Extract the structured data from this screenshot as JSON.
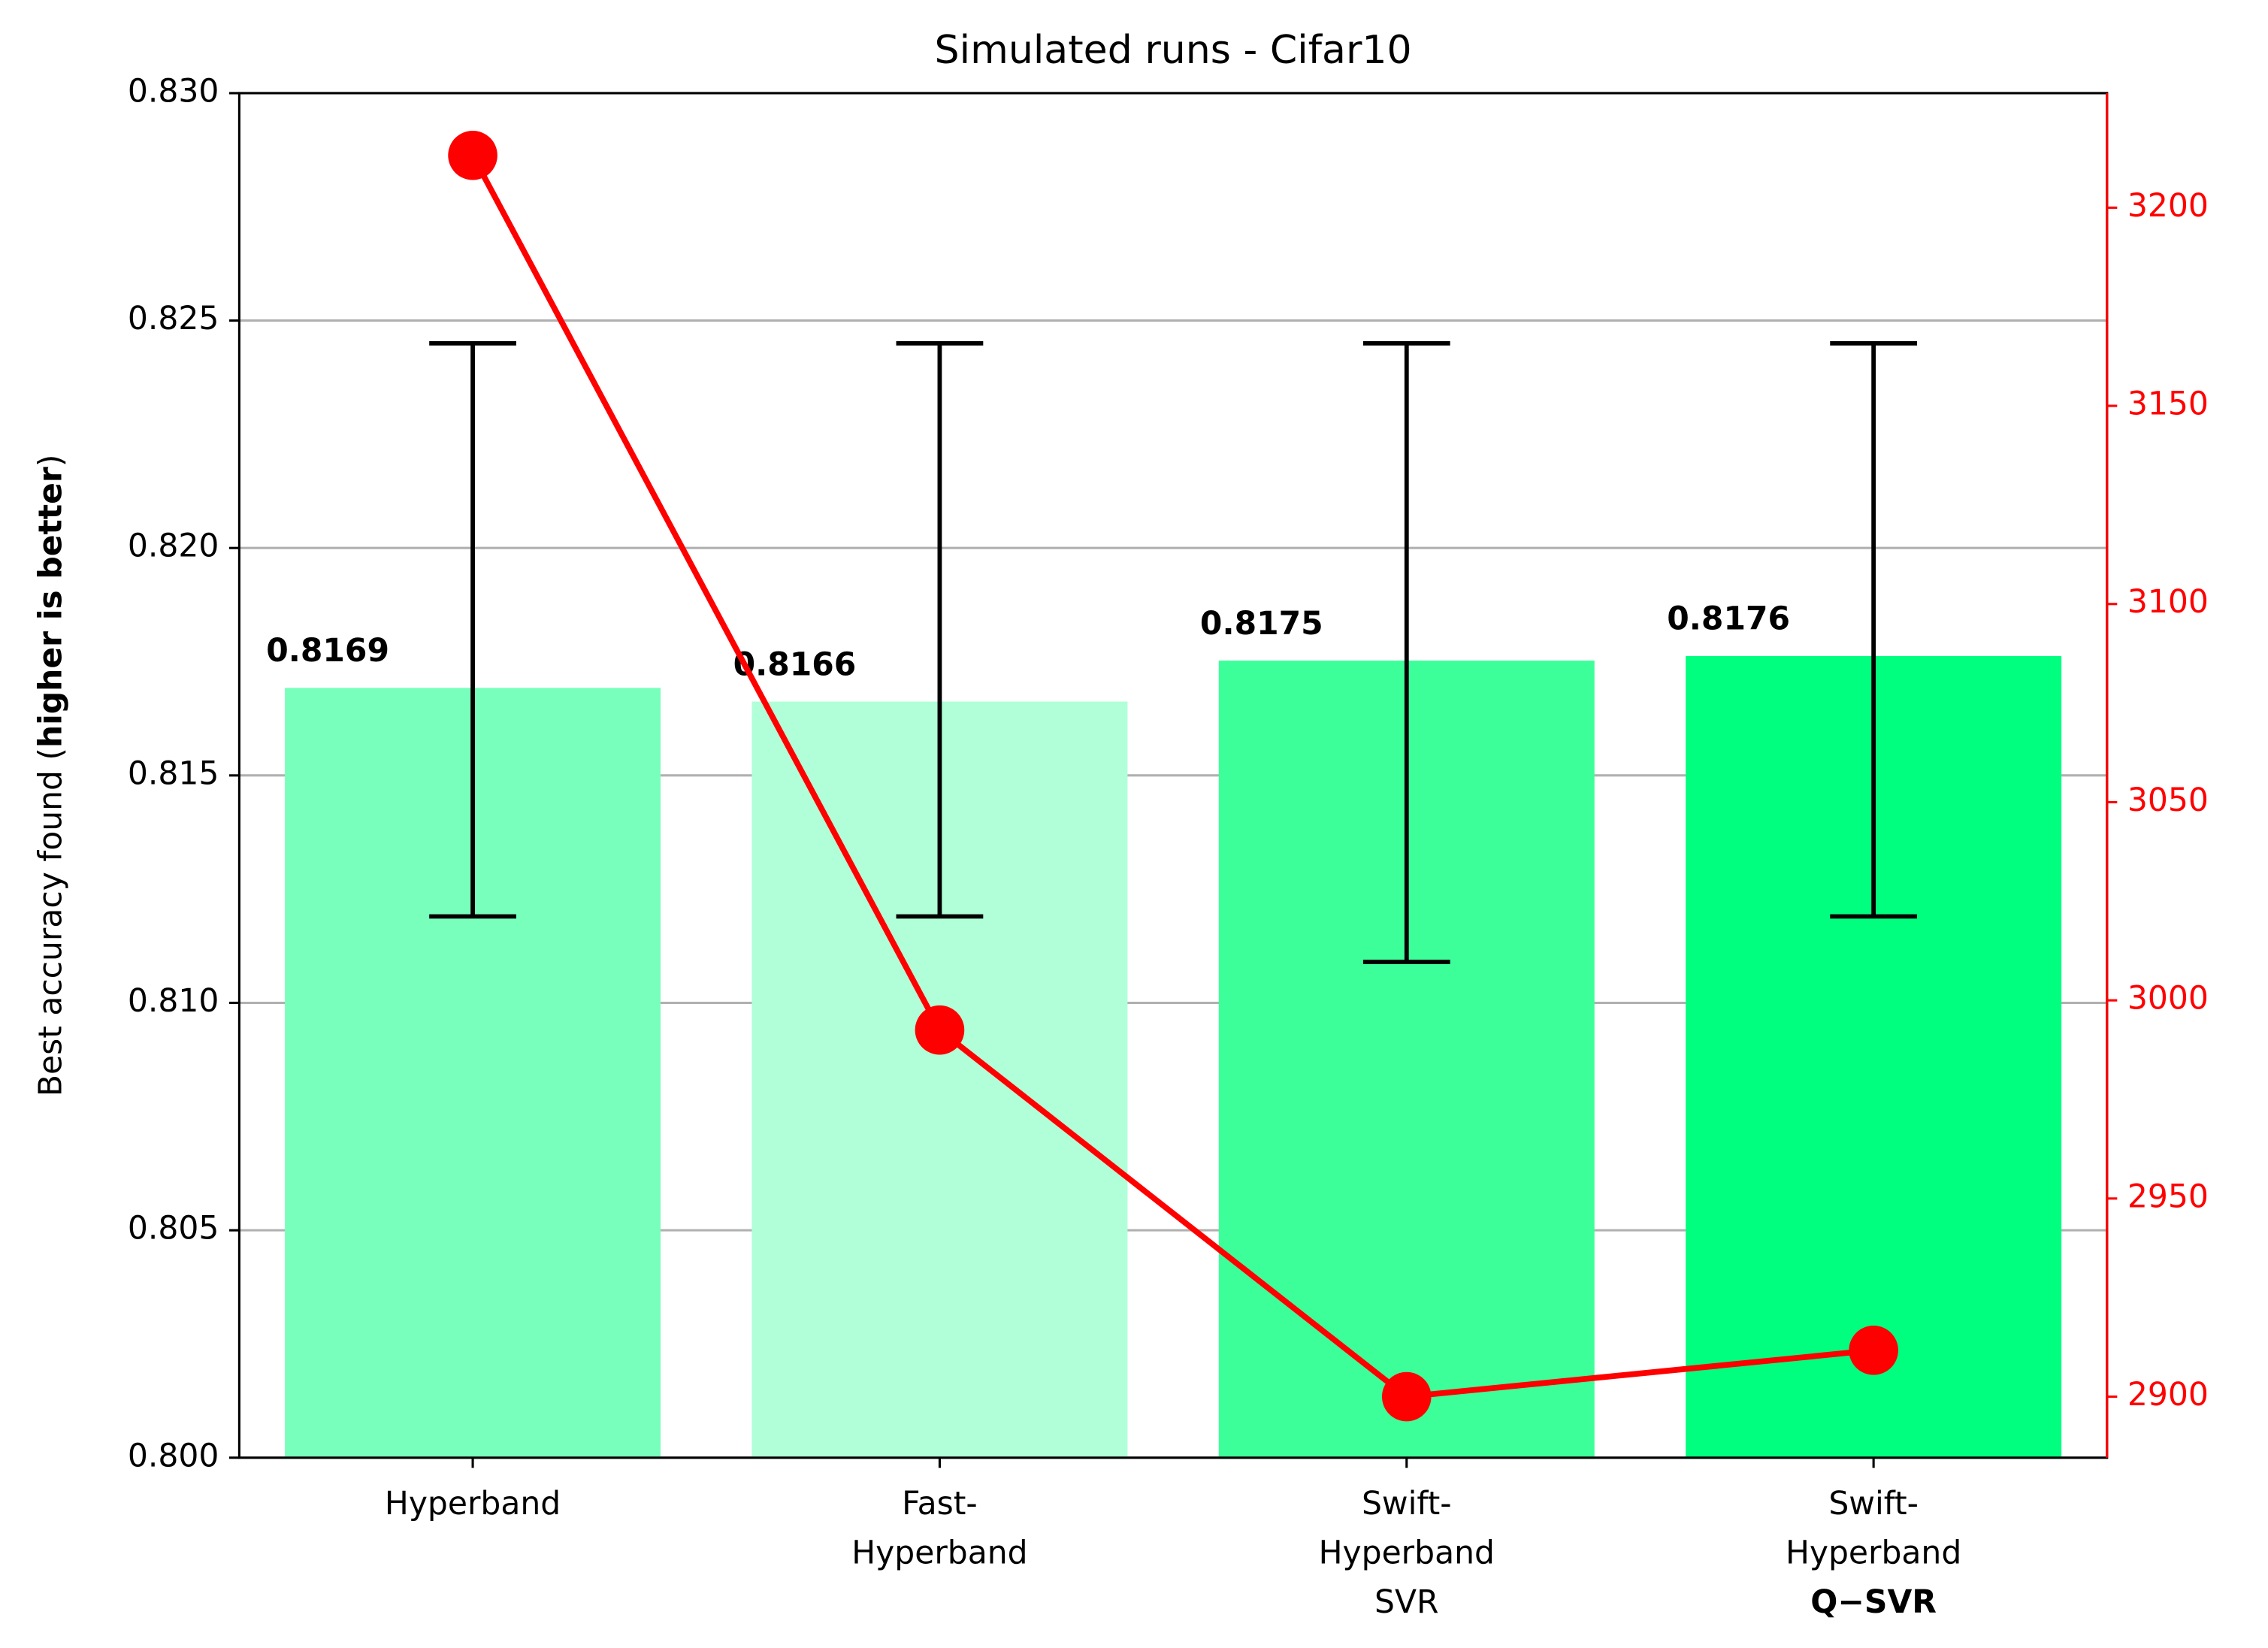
{
  "chart_data": {
    "type": "bar",
    "title": "Simulated runs - Cifar10",
    "ylabel_parts": [
      {
        "text": "Best accuracy found ("
      },
      {
        "text": "higher is better",
        "bold": true
      },
      {
        "text": ")"
      }
    ],
    "categories": [
      [
        "Hyperband"
      ],
      [
        "Fast-",
        "Hyperband"
      ],
      [
        "Swift-",
        "Hyperband",
        "SVR"
      ],
      [
        "Swift-",
        "Hyperband",
        "Q−SVR"
      ]
    ],
    "values": [
      0.8169,
      0.8166,
      0.8175,
      0.8176
    ],
    "colors": [
      "#78ffbc",
      "#b0ffd8",
      "#3dff9a",
      "#00ff7f"
    ],
    "error_low": [
      0.8119,
      0.8119,
      0.8109,
      0.8119
    ],
    "error_high": [
      0.8245,
      0.8245,
      0.8245,
      0.8245
    ],
    "ylim": [
      0.8,
      0.83
    ],
    "yticks": [
      {
        "value": 0.8,
        "label": "0.800"
      },
      0.805,
      {
        "value": 0.81,
        "label": "0.810"
      },
      0.815,
      {
        "value": 0.82,
        "label": "0.820"
      },
      0.825,
      {
        "value": 0.83,
        "label": "0.830"
      }
    ],
    "grid": true,
    "series": [
      {
        "type": "line",
        "axis": "y2",
        "color": "#ff0000",
        "values": [
          3213.2,
          2992.5,
          2900,
          2911.7
        ]
      }
    ],
    "y2lim": [
      2884.6,
      3228.9
    ],
    "y2ticks": [
      2900,
      2950,
      3000,
      3050,
      3100,
      3150,
      3200
    ]
  }
}
